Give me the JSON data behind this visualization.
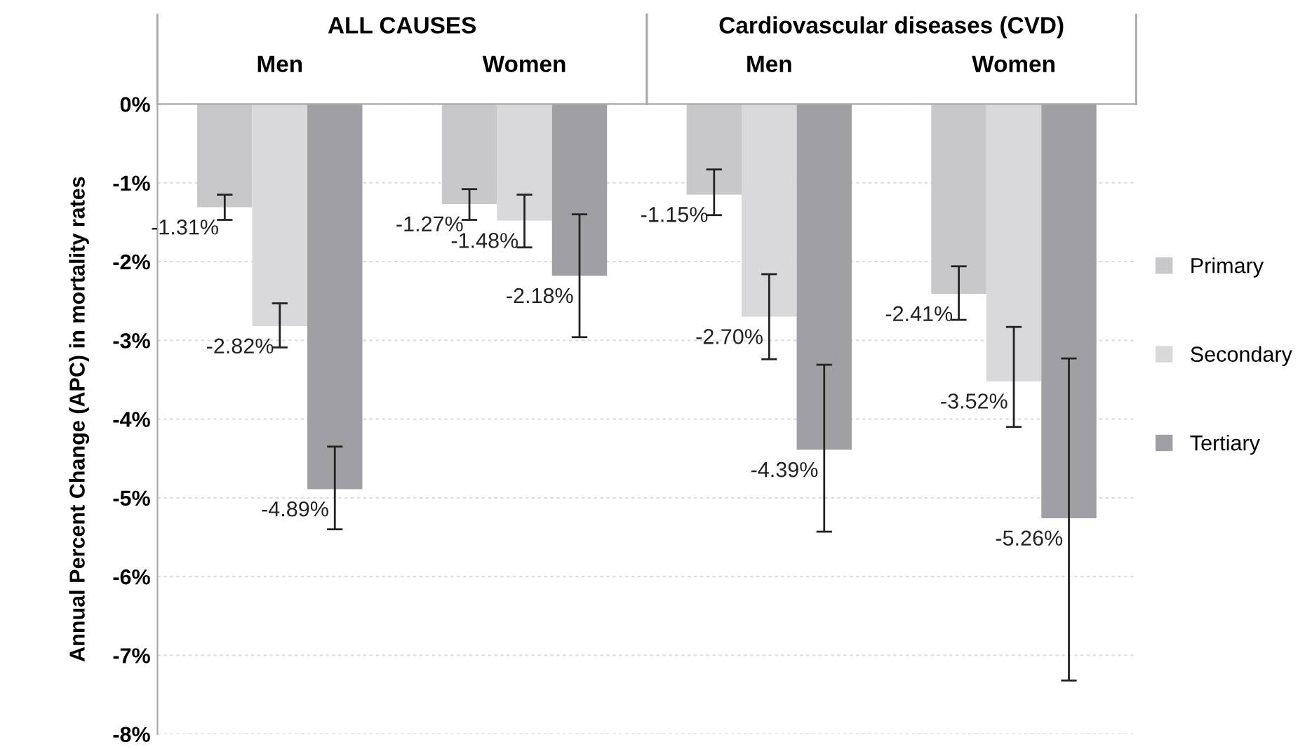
{
  "chart_data": {
    "type": "bar",
    "ylabel": "Annual Percent Change (APC) in mortality rates",
    "categories": [
      "Men",
      "Women",
      "Men",
      "Women"
    ],
    "annotations": [
      "ALL CAUSES",
      "Cardiovascular diseases (CVD)"
    ],
    "series": [
      {
        "name": "Primary",
        "color": "#c8c8ca",
        "values": [
          -1.31,
          -1.27,
          -1.15,
          -2.41
        ],
        "value_labels": [
          "-1.31%",
          "-1.27%",
          "-1.15%",
          "-2.41%"
        ],
        "errors": [
          [
            -1.47,
            -1.15
          ],
          [
            -1.47,
            -1.08
          ],
          [
            -1.41,
            -0.83
          ],
          [
            -2.74,
            -2.06
          ]
        ]
      },
      {
        "name": "Secondary",
        "color": "#d9d9db",
        "values": [
          -2.82,
          -1.48,
          -2.7,
          -3.52
        ],
        "value_labels": [
          "-2.82%",
          "-1.48%",
          "-2.70%",
          "-3.52%"
        ],
        "errors": [
          [
            -3.09,
            -2.53
          ],
          [
            -1.82,
            -1.15
          ],
          [
            -3.24,
            -2.16
          ],
          [
            -4.1,
            -2.83
          ]
        ]
      },
      {
        "name": "Tertiary",
        "color": "#a0a0a4",
        "values": [
          -4.89,
          -2.18,
          -4.39,
          -5.26
        ],
        "value_labels": [
          "-4.89%",
          "-2.18%",
          "-4.39%",
          "-5.26%"
        ],
        "errors": [
          [
            -5.4,
            -4.35
          ],
          [
            -2.96,
            -1.4
          ],
          [
            -5.43,
            -3.31
          ],
          [
            -7.32,
            -3.23
          ]
        ]
      }
    ],
    "ylim": [
      -8,
      0
    ],
    "yticks": [
      {
        "value": -8,
        "label": "-8%"
      },
      {
        "value": -7,
        "label": "-7%"
      },
      {
        "value": -6,
        "label": "-6%"
      },
      {
        "value": -5,
        "label": "-5%"
      },
      {
        "value": -4,
        "label": "-4%"
      },
      {
        "value": -3,
        "label": "-3%"
      },
      {
        "value": -2,
        "label": "-2%"
      },
      {
        "value": -1,
        "label": "-1%"
      },
      {
        "value": 0,
        "label": "0%"
      }
    ],
    "grid": "y",
    "legend": "right"
  }
}
